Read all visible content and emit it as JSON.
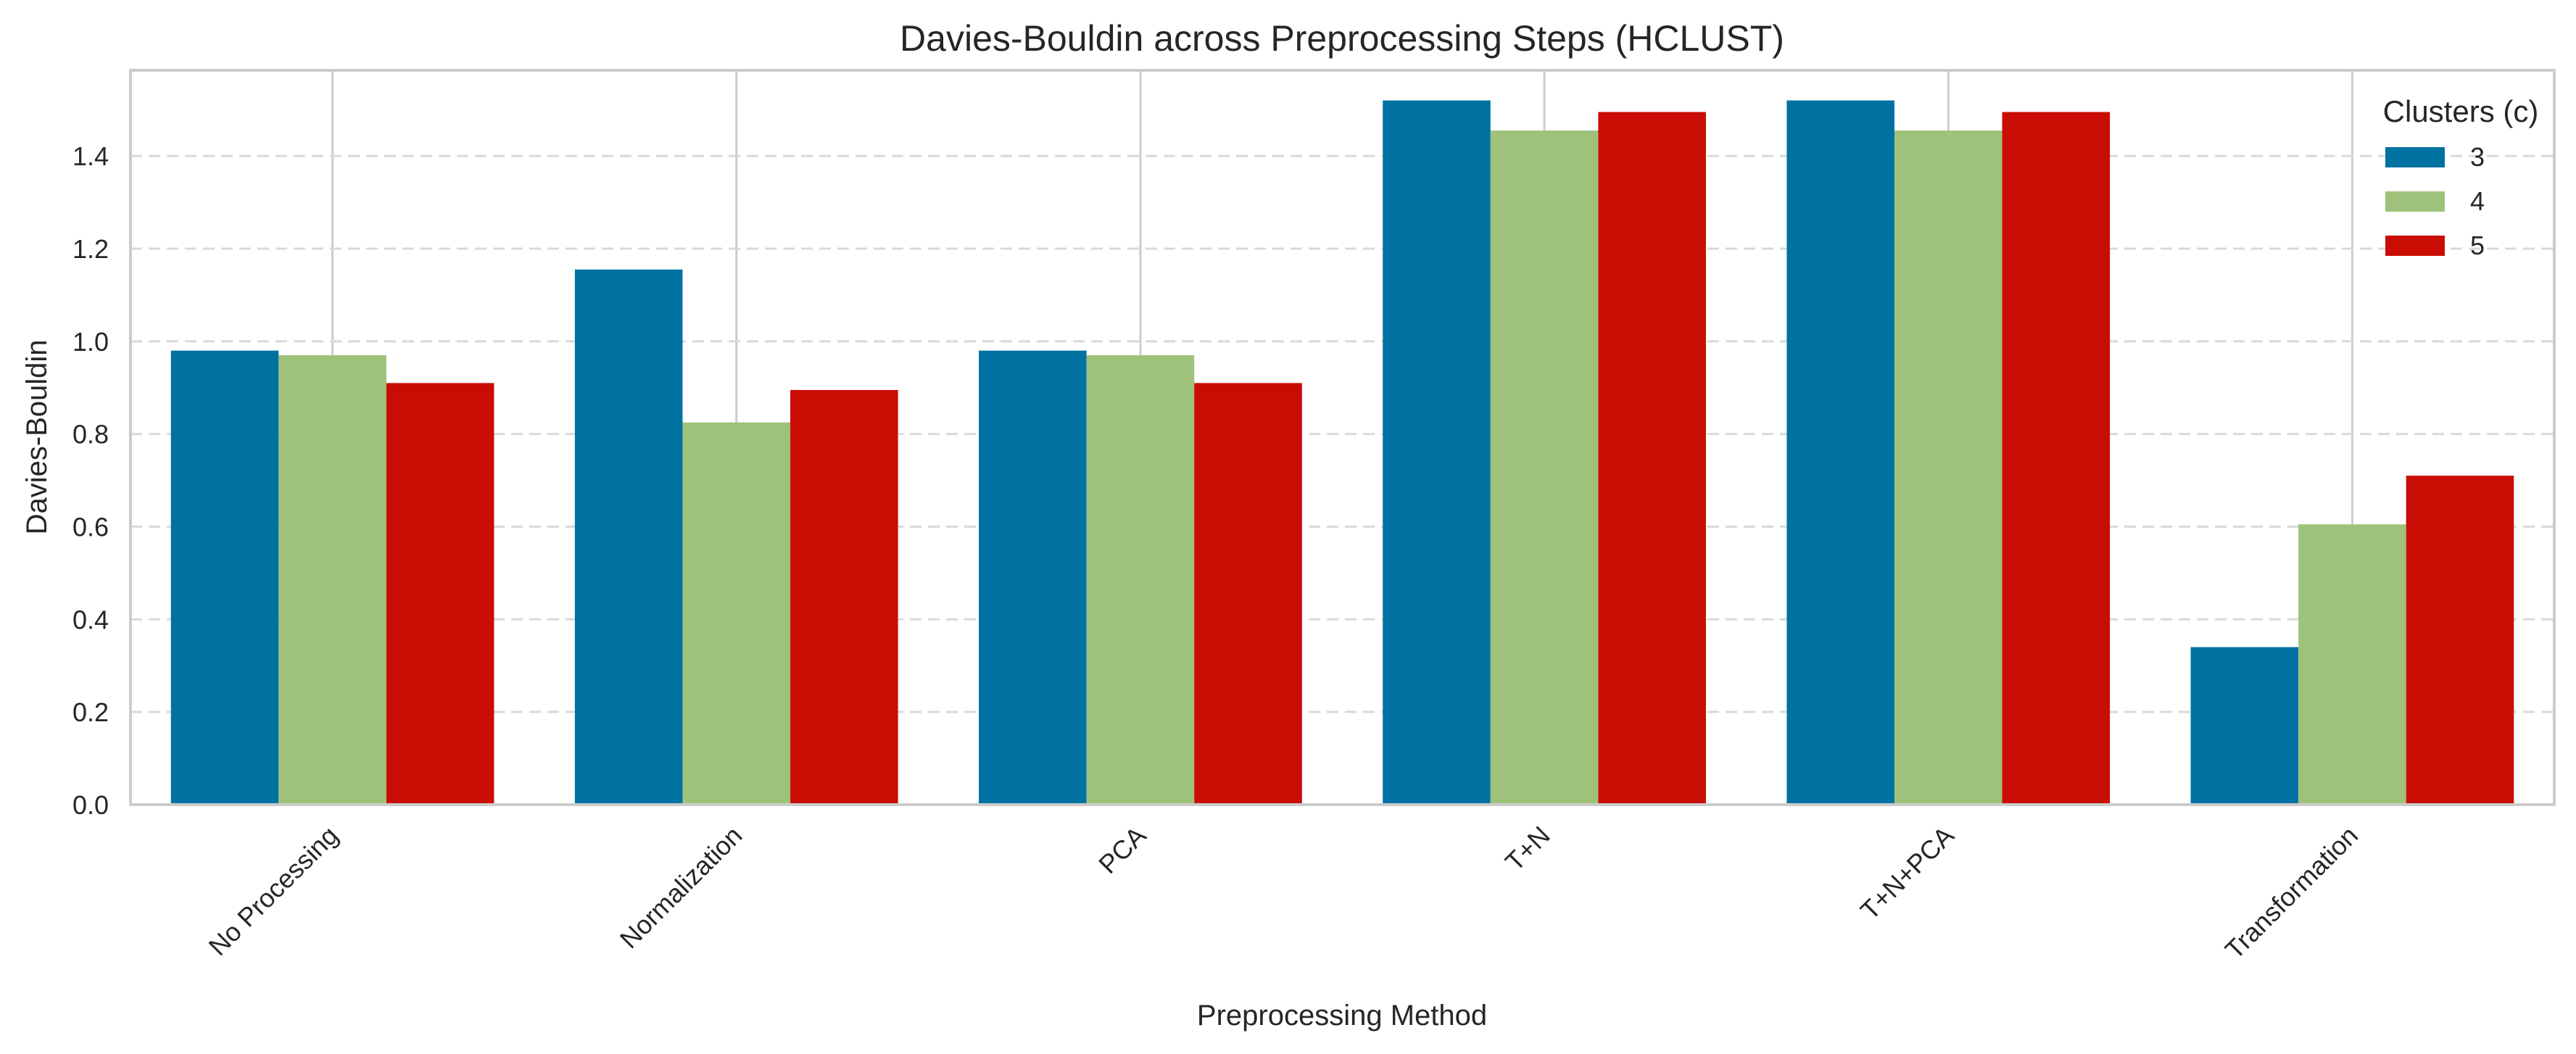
{
  "chart_data": {
    "type": "bar",
    "title": "Davies-Bouldin across Preprocessing Steps (HCLUST)",
    "xlabel": "Preprocessing Method",
    "ylabel": "Davies-Bouldin",
    "categories": [
      "No Processing",
      "Normalization",
      "PCA",
      "T+N",
      "T+N+PCA",
      "Transformation"
    ],
    "series": [
      {
        "name": "3",
        "color": "#0072a2",
        "values": [
          0.98,
          1.155,
          0.98,
          1.52,
          1.52,
          0.34
        ]
      },
      {
        "name": "4",
        "color": "#9ec27a",
        "values": [
          0.97,
          0.825,
          0.97,
          1.455,
          1.455,
          0.605
        ]
      },
      {
        "name": "5",
        "color": "#c90d05",
        "values": [
          0.91,
          0.895,
          0.91,
          1.495,
          1.495,
          0.71
        ]
      }
    ],
    "ylim": [
      0,
      1.585
    ],
    "yticks": [
      0.0,
      0.2,
      0.4,
      0.6,
      0.8,
      1.0,
      1.2,
      1.4
    ],
    "ytick_labels": [
      "0.0",
      "0.2",
      "0.4",
      "0.6",
      "0.8",
      "1.0",
      "1.2",
      "1.4"
    ],
    "legend": {
      "title": "Clusters (c)",
      "placement": "top-right"
    },
    "grid": {
      "y": "dashed",
      "x": "solid"
    }
  }
}
